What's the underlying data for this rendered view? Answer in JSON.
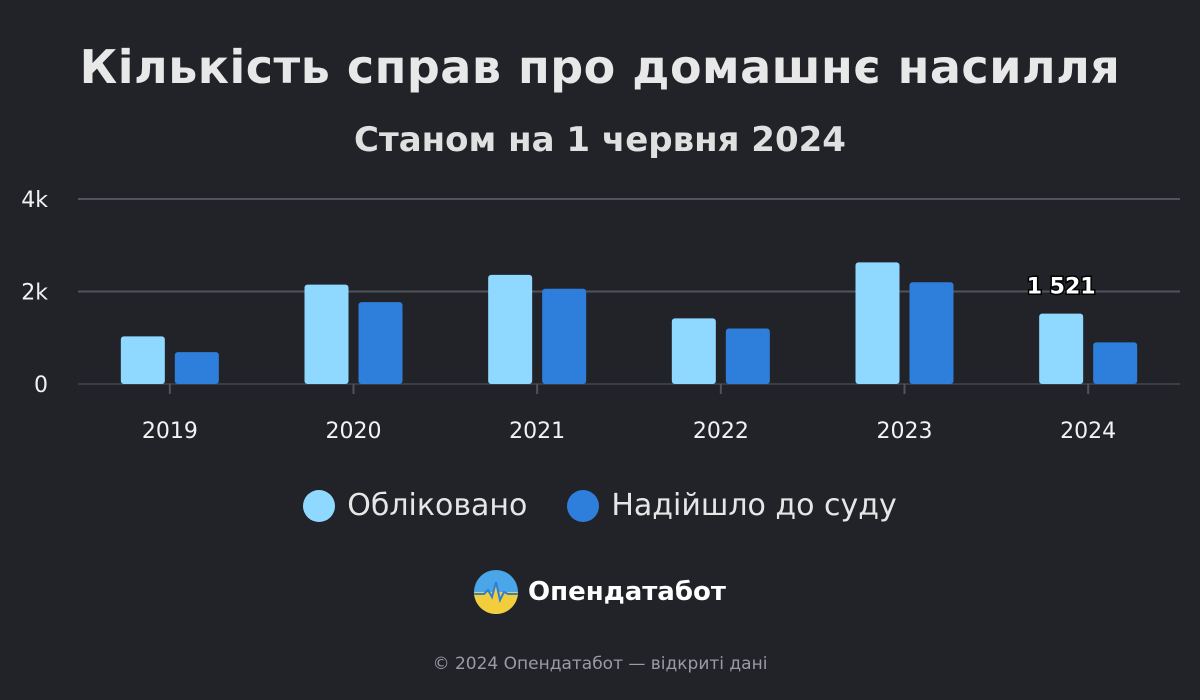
{
  "header": {
    "title": "Кількість справ про домашнє насилля",
    "subtitle": "Станом на 1 червня 2024"
  },
  "legend": {
    "items": [
      {
        "label": "Обліковано",
        "color": "#8fd8ff"
      },
      {
        "label": "Надійшло до суду",
        "color": "#2e7fdc"
      }
    ]
  },
  "brand": {
    "name": "Опендатабот",
    "icon": "opendatabot-logo-icon"
  },
  "footer": {
    "text": "© 2024 Опендатабот — відкриті дані"
  },
  "chart_data": {
    "type": "bar",
    "categories": [
      "2019",
      "2020",
      "2021",
      "2022",
      "2023",
      "2024"
    ],
    "series": [
      {
        "name": "Обліковано",
        "color": "#8fd8ff",
        "values": [
          1030,
          2150,
          2360,
          1420,
          2630,
          1521
        ]
      },
      {
        "name": "Надійшло до суду",
        "color": "#2e7fdc",
        "values": [
          690,
          1770,
          2060,
          1200,
          2200,
          900
        ]
      }
    ],
    "ylim": [
      0,
      4000
    ],
    "yticks": [
      0,
      2000,
      4000
    ],
    "ytick_labels": [
      "0",
      "2k",
      "4k"
    ],
    "grid": true,
    "legend_position": "bottom",
    "annotations": [
      {
        "category": "2024",
        "series": "Обліковано",
        "text": "1 521"
      }
    ]
  }
}
